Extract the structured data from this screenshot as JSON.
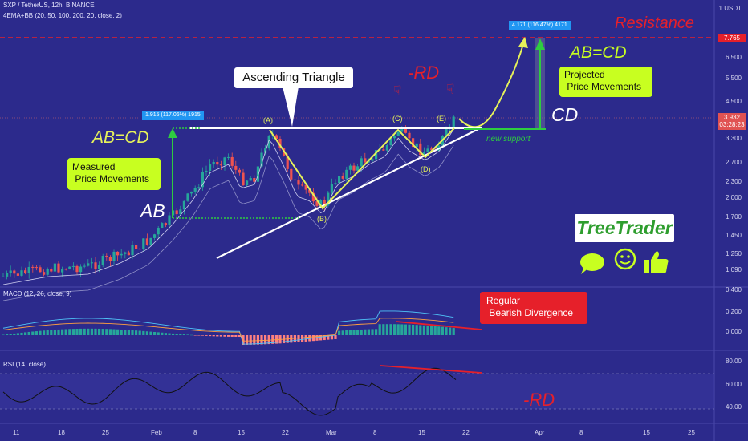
{
  "header": {
    "symbol_line": "SXP / TetherUS, 12h, BINANCE",
    "indicator_line": "4EMA+BB (20, 50, 100, 200, 20, close, 2)",
    "macd_label": "MACD (12, 26, close, 9)",
    "rsi_label": "RSI (14, close)"
  },
  "price_axis": {
    "currency": "1 USDT",
    "ticks": [
      "6.500",
      "5.500",
      "4.500",
      "3.300",
      "2.700",
      "2.300",
      "2.000",
      "1.700",
      "1.450",
      "1.250",
      "1.090"
    ],
    "resistance_badge": "7.765",
    "current_price": "3.932",
    "countdown": "03:28:23"
  },
  "macd_axis": {
    "ticks": [
      "0.400",
      "0.200",
      "0.000"
    ]
  },
  "rsi_axis": {
    "ticks": [
      "80.00",
      "60.00",
      "40.00"
    ]
  },
  "date_axis": [
    "11",
    "18",
    "25",
    "Feb",
    "8",
    "15",
    "22",
    "Mar",
    "8",
    "15",
    "22",
    "Apr",
    "8",
    "15",
    "25"
  ],
  "annotations": {
    "resistance": "Resistance",
    "ascending_triangle": "Ascending Triangle",
    "rd_top": "-RD",
    "ab_cd_left": "AB=CD",
    "ab_cd_right": "AB=CD",
    "measured": "Measured\n Price Movements",
    "projected": "Projected\n Price Movements",
    "ab": "AB",
    "cd": "CD",
    "new_support": "new support",
    "point_a": "(A)",
    "point_b": "(B)",
    "point_c": "(C)",
    "point_d": "(D)",
    "point_e": "(E)",
    "measure_left": "1.915 (117.06%) 1915",
    "measure_right": "4.171 (116.47%) 4171",
    "divergence": "Regular\n Bearish Divergence",
    "rd_bottom": "-RD",
    "brand": "TreeTrader"
  },
  "colors": {
    "background": "#2c2a8c",
    "bull": "#26a69a",
    "bear": "#ef5350",
    "accent_yellow": "#e6f25a",
    "label_green": "#c8ff20",
    "red_annot": "#e6202a",
    "badge_blue": "#2196f3",
    "brand_bg": "#ffffff",
    "brand_text": "#2e9e2e"
  },
  "icons": [
    "speech-bubble-icon",
    "smiley-icon",
    "thumbs-up-icon",
    "hand-pointing-down-icon"
  ]
}
